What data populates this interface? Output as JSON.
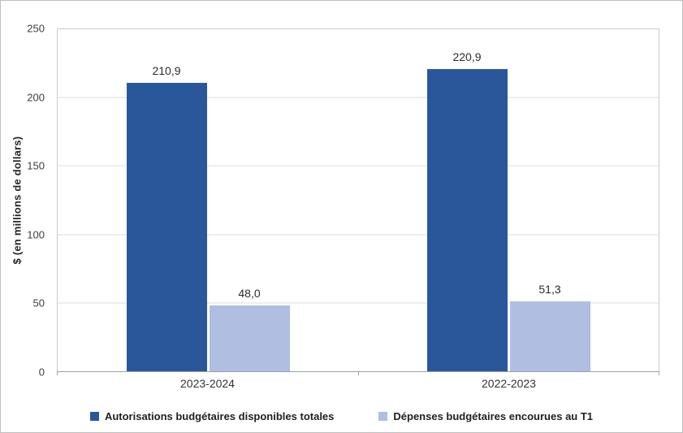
{
  "chart_data": {
    "type": "bar",
    "title": "",
    "categories": [
      "2023-2024",
      "2022-2023"
    ],
    "series": [
      {
        "name": "Autorisations budgétaires disponibles totales",
        "color": "#2a579a",
        "values": [
          210.9,
          220.9
        ],
        "value_labels": [
          "210,9",
          "220,9"
        ]
      },
      {
        "name": "Dépenses budgétaires encourues au T1",
        "color": "#afbee1",
        "values": [
          48.0,
          51.3
        ],
        "value_labels": [
          "48,0",
          "51,3"
        ]
      }
    ],
    "xlabel": "",
    "ylabel": "$ (en millions de dollars)",
    "ylim": [
      0,
      250
    ],
    "yticks": [
      "0",
      "50",
      "100",
      "150",
      "200",
      "250"
    ],
    "grid": true,
    "legend_position": "bottom"
  }
}
